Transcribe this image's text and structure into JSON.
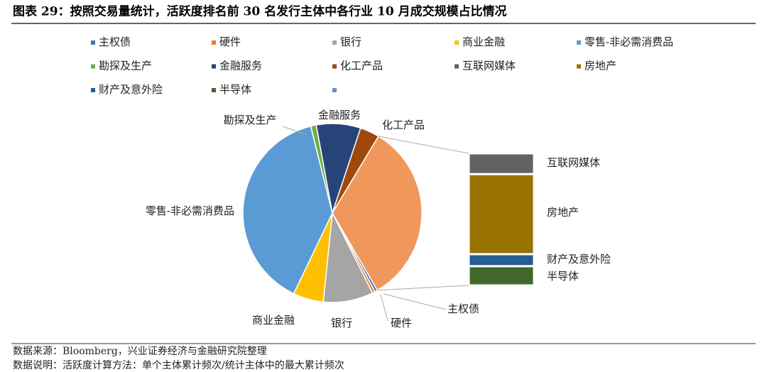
{
  "chart_data": {
    "type": "pie-of-bar",
    "title": "图表 29：按照交易量统计，活跃度排名前 30 名发行主体中各行业 10 月成交规模占比情况",
    "pie": {
      "categories": [
        "主权债",
        "硬件",
        "银行",
        "商业金融",
        "零售-非必需消费品",
        "勘探及生产",
        "金融服务",
        "化工产品"
      ],
      "values": [
        0.5,
        0.5,
        9,
        5.5,
        39,
        1,
        8,
        3.5
      ],
      "colors": [
        "#4472c4",
        "#ed7d31",
        "#a5a5a5",
        "#ffc000",
        "#5b9bd5",
        "#70ad47",
        "#264478",
        "#9e480e"
      ]
    },
    "other": {
      "value": 33,
      "color": "#f0975b",
      "legend_color": "#698ed0"
    },
    "bar": {
      "categories": [
        "互联网媒体",
        "房地产",
        "财产及意外险",
        "半导体"
      ],
      "values": [
        5.2,
        20,
        3,
        4.8
      ],
      "colors": [
        "#636363",
        "#997300",
        "#255e91",
        "#43682b"
      ]
    },
    "source": "数据来源：Bloomberg，兴业证券经济与金融研究院整理",
    "note": "数据说明：活跃度计算方法：单个主体累计频次/统计主体中的最大累计频次"
  }
}
